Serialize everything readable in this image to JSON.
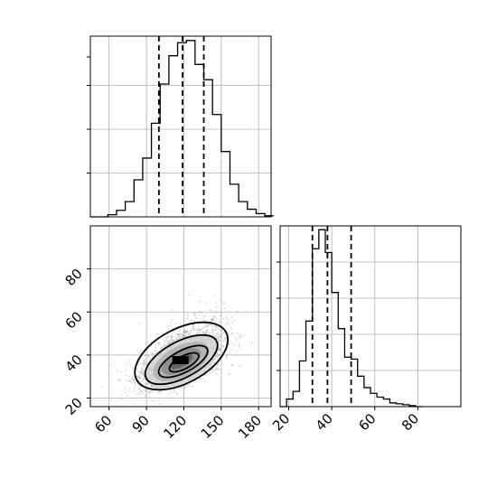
{
  "chart_data": {
    "type": "corner",
    "parameters": [
      "",
      ""
    ],
    "panels": [
      {
        "id": "hist_p1",
        "type": "histogram",
        "x_range": [
          45,
          190
        ],
        "bin_edges": [
          45,
          52,
          59,
          66,
          73,
          80,
          87,
          94,
          101,
          108,
          115,
          122,
          129,
          136,
          143,
          150,
          157,
          164,
          171,
          178,
          185,
          192
        ],
        "counts": [
          0,
          0,
          0.01,
          0.03,
          0.07,
          0.17,
          0.27,
          0.43,
          0.61,
          0.74,
          0.8,
          0.81,
          0.7,
          0.63,
          0.47,
          0.3,
          0.15,
          0.07,
          0.035,
          0.015,
          0.005
        ],
        "quantiles": [
          100,
          119,
          136
        ],
        "grid": true,
        "y_tick_labels_shown": false
      },
      {
        "id": "hist_p2",
        "type": "histogram",
        "x_range": [
          16,
          100
        ],
        "bin_edges": [
          16,
          19,
          22,
          25,
          28,
          31,
          34,
          37,
          40,
          43,
          46,
          49,
          52,
          55,
          58,
          61,
          64,
          67,
          70,
          73,
          76,
          79,
          82
        ],
        "counts": [
          0,
          0.04,
          0.08,
          0.24,
          0.45,
          0.83,
          0.93,
          0.81,
          0.6,
          0.41,
          0.26,
          0.25,
          0.16,
          0.1,
          0.07,
          0.05,
          0.04,
          0.02,
          0.015,
          0.01,
          0.005,
          0
        ],
        "quantiles": [
          31,
          38,
          49
        ],
        "grid": true,
        "x_ticks": [
          20,
          40,
          60,
          80
        ],
        "y_tick_labels_shown": false
      },
      {
        "id": "joint",
        "type": "scatter_density",
        "x_range": [
          45,
          190
        ],
        "y_range": [
          16,
          100
        ],
        "x_ticks": [
          60,
          90,
          120,
          150,
          180
        ],
        "y_ticks": [
          20,
          40,
          60,
          80
        ],
        "center": [
          118,
          36
        ],
        "spread": [
          17,
          10
        ],
        "correlation": 0.55,
        "n_points": 2500,
        "contour_levels": 4,
        "grid": true
      }
    ]
  }
}
